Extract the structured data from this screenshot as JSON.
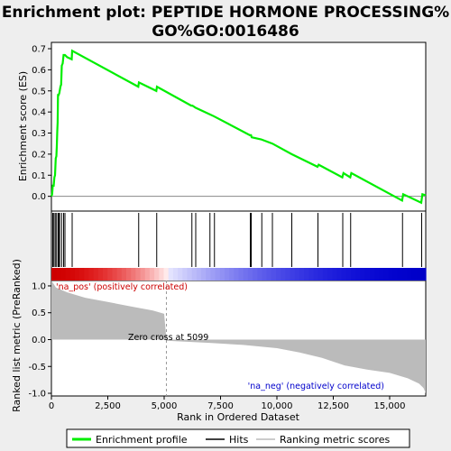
{
  "chart_data": {
    "type": "line",
    "title_line1": "Enrichment plot: PEPTIDE HORMONE PROCESSING%",
    "title_line2": "GO%GO:0016486",
    "top_panel": {
      "ylabel": "Enrichment score (ES)",
      "ylim": [
        -0.07,
        0.73
      ],
      "yticks": [
        "0.0",
        "0.1",
        "0.2",
        "0.3",
        "0.4",
        "0.5",
        "0.6",
        "0.7"
      ],
      "series_color": "#00ee00",
      "es_points": [
        [
          0,
          0.0
        ],
        [
          30,
          0.01
        ],
        [
          60,
          0.05
        ],
        [
          100,
          0.05
        ],
        [
          130,
          0.09
        ],
        [
          160,
          0.1
        ],
        [
          190,
          0.18
        ],
        [
          220,
          0.19
        ],
        [
          240,
          0.24
        ],
        [
          260,
          0.31
        ],
        [
          275,
          0.35
        ],
        [
          290,
          0.48
        ],
        [
          320,
          0.48
        ],
        [
          350,
          0.49
        ],
        [
          400,
          0.52
        ],
        [
          430,
          0.53
        ],
        [
          460,
          0.62
        ],
        [
          500,
          0.63
        ],
        [
          540,
          0.67
        ],
        [
          600,
          0.67
        ],
        [
          700,
          0.66
        ],
        [
          900,
          0.65
        ],
        [
          920,
          0.69
        ],
        [
          3850,
          0.52
        ],
        [
          3880,
          0.54
        ],
        [
          4650,
          0.5
        ],
        [
          4680,
          0.52
        ],
        [
          6200,
          0.43
        ],
        [
          6250,
          0.43
        ],
        [
          6400,
          0.42
        ],
        [
          7000,
          0.39
        ],
        [
          7200,
          0.38
        ],
        [
          8800,
          0.29
        ],
        [
          8850,
          0.29
        ],
        [
          8880,
          0.28
        ],
        [
          9300,
          0.27
        ],
        [
          9800,
          0.25
        ],
        [
          10650,
          0.2
        ],
        [
          11800,
          0.14
        ],
        [
          11850,
          0.15
        ],
        [
          12900,
          0.09
        ],
        [
          12950,
          0.11
        ],
        [
          13250,
          0.09
        ],
        [
          13300,
          0.11
        ],
        [
          15550,
          -0.02
        ],
        [
          15600,
          0.01
        ],
        [
          16400,
          -0.03
        ],
        [
          16450,
          0.01
        ],
        [
          16600,
          0.005
        ]
      ]
    },
    "hits": [
      60,
      110,
      170,
      230,
      300,
      330,
      360,
      450,
      540,
      600,
      920,
      3870,
      4670,
      6230,
      6400,
      7030,
      7230,
      8820,
      8860,
      9330,
      9800,
      10660,
      11820,
      12920,
      13270,
      15570,
      16420
    ],
    "bottom_panel": {
      "ylabel": "Ranked list metric (PreRanked)",
      "ylim": [
        -1.05,
        1.1
      ],
      "yticks": [
        "1.0",
        "0.5",
        "0.0",
        "-0.5",
        "-1.0"
      ],
      "metric_points": [
        [
          0,
          1.1
        ],
        [
          200,
          0.97
        ],
        [
          700,
          0.88
        ],
        [
          1500,
          0.78
        ],
        [
          2500,
          0.7
        ],
        [
          3500,
          0.62
        ],
        [
          4500,
          0.54
        ],
        [
          5000,
          0.48
        ],
        [
          5099,
          0.0
        ],
        [
          5100,
          -0.02
        ],
        [
          7000,
          -0.06
        ],
        [
          8500,
          -0.1
        ],
        [
          10000,
          -0.16
        ],
        [
          11000,
          -0.24
        ],
        [
          12000,
          -0.34
        ],
        [
          13000,
          -0.48
        ],
        [
          14000,
          -0.56
        ],
        [
          15000,
          -0.62
        ],
        [
          15800,
          -0.72
        ],
        [
          16300,
          -0.82
        ],
        [
          16500,
          -0.9
        ],
        [
          16600,
          -1.0
        ]
      ],
      "pos_label": "'na_pos' (positively correlated)",
      "neg_label": "'na_neg' (negatively correlated)",
      "zero_cross_label": "Zero cross at 5099",
      "zero_cross": 5099,
      "pos_color": "#cc0000",
      "neg_color": "#0000ff"
    },
    "xlabel": "Rank in Ordered Dataset",
    "xlim": [
      0,
      16600
    ],
    "xticks": [
      "0",
      "2,500",
      "5,000",
      "7,500",
      "10,000",
      "12,500",
      "15,000"
    ],
    "legend": {
      "position": "bottom",
      "items": [
        "Enrichment profile",
        "Hits",
        "Ranking metric scores"
      ]
    }
  }
}
